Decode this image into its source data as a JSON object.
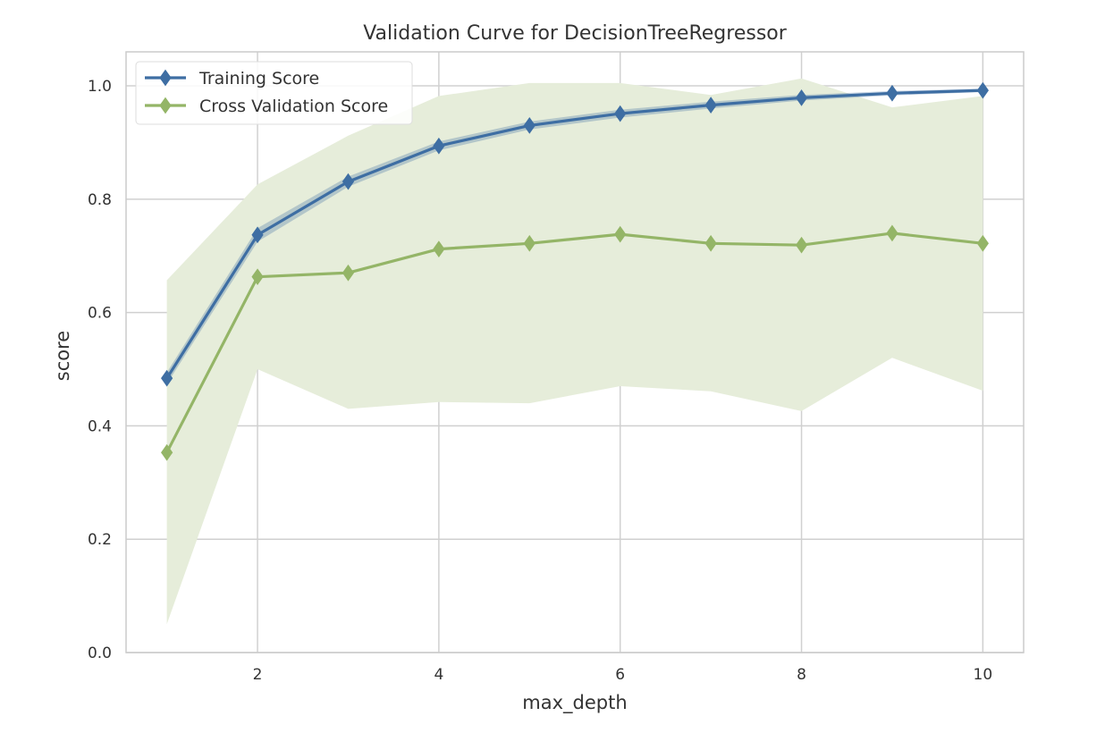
{
  "chart_data": {
    "type": "line",
    "title": "Validation Curve for DecisionTreeRegressor",
    "xlabel": "max_depth",
    "ylabel": "score",
    "x": [
      1,
      2,
      3,
      4,
      5,
      6,
      7,
      8,
      9,
      10
    ],
    "xlim": [
      0.55,
      10.45
    ],
    "ylim": [
      0.0,
      1.06
    ],
    "xticks": [
      2,
      4,
      6,
      8,
      10
    ],
    "xtick_labels": [
      "2",
      "4",
      "6",
      "8",
      "10"
    ],
    "yticks": [
      0.0,
      0.2,
      0.4,
      0.6,
      0.8,
      1.0
    ],
    "ytick_labels": [
      "0.0",
      "0.2",
      "0.4",
      "0.6",
      "0.8",
      "1.0"
    ],
    "grid": true,
    "legend_position": "top-left",
    "series": [
      {
        "name": "Training Score",
        "color": "#3e6ea3",
        "values": [
          0.484,
          0.737,
          0.831,
          0.894,
          0.93,
          0.951,
          0.966,
          0.979,
          0.987,
          0.992
        ],
        "band_lower": [
          0.474,
          0.725,
          0.822,
          0.886,
          0.923,
          0.944,
          0.96,
          0.974,
          0.983,
          0.989
        ],
        "band_upper": [
          0.494,
          0.749,
          0.84,
          0.902,
          0.937,
          0.958,
          0.972,
          0.984,
          0.991,
          0.995
        ]
      },
      {
        "name": "Cross Validation Score",
        "color": "#94b567",
        "band_color": "#e6edda",
        "values": [
          0.353,
          0.663,
          0.67,
          0.712,
          0.722,
          0.738,
          0.722,
          0.719,
          0.74,
          0.722
        ],
        "band_lower": [
          0.05,
          0.5,
          0.43,
          0.442,
          0.44,
          0.47,
          0.461,
          0.426,
          0.52,
          0.462
        ],
        "band_upper": [
          0.657,
          0.826,
          0.912,
          0.982,
          1.005,
          1.005,
          0.984,
          1.013,
          0.962,
          0.982
        ]
      }
    ]
  }
}
